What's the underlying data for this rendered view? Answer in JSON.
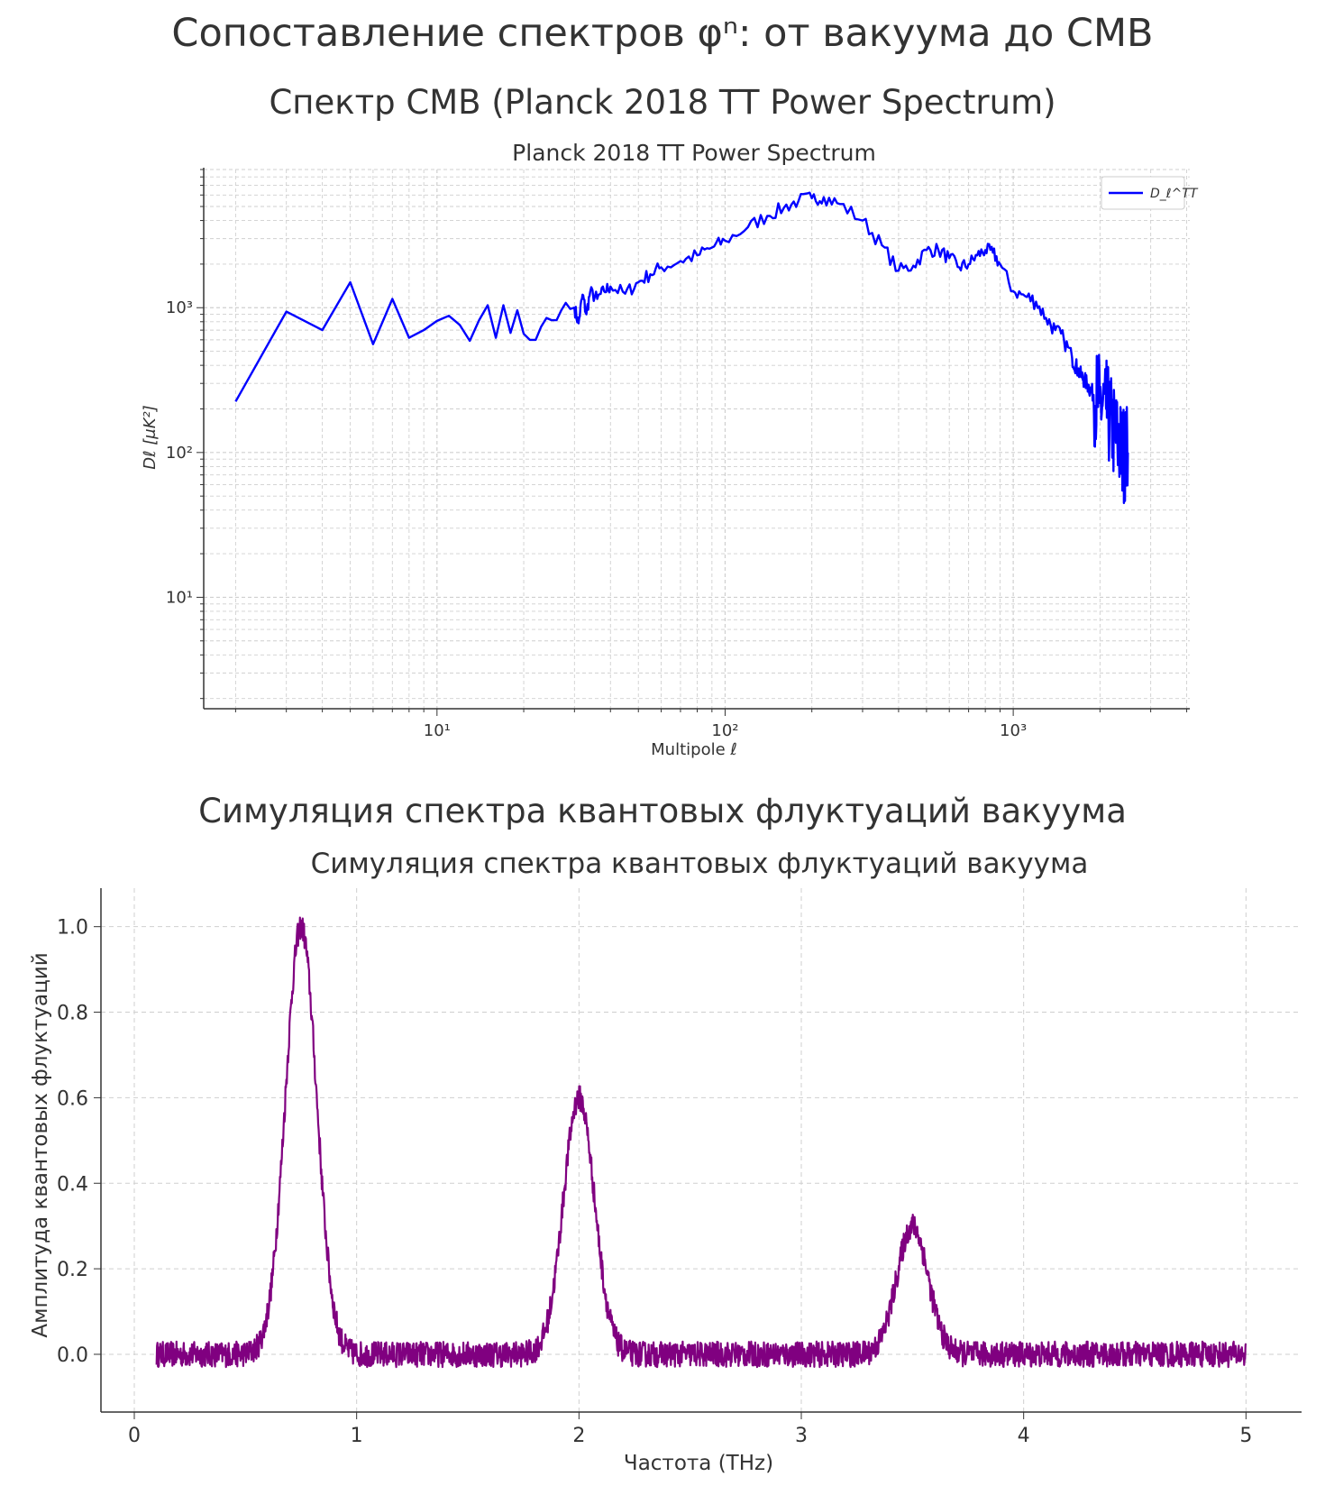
{
  "page": {
    "main_title": "Сопоставление спектров φⁿ: от вакуума до CMB",
    "subtitle_1": "Спектр CMB (Planck 2018 TT Power Spectrum)",
    "subtitle_2": "Симуляция спектра квантовых флуктуаций вакуума"
  },
  "chart_data": [
    {
      "type": "line",
      "title": "Planck 2018 TT Power Spectrum",
      "xlabel": "Multipole ℓ",
      "ylabel": "Dℓ [μK²]",
      "xscale": "log",
      "yscale": "log",
      "xlim": [
        1.55,
        4100
      ],
      "ylim": [
        1.7,
        9000
      ],
      "xticks": [
        10,
        100,
        1000
      ],
      "yticks": [
        10,
        100,
        1000
      ],
      "xtick_labels": [
        "10¹",
        "10²",
        "10³"
      ],
      "ytick_labels": [
        "10¹",
        "10²",
        "10³"
      ],
      "grid": true,
      "legend": "top-right",
      "colors": {
        "line": "#0000ff"
      },
      "series": [
        {
          "name": "D_ℓ^TT",
          "x": [
            2,
            3,
            4,
            5,
            6,
            7,
            8,
            9,
            10,
            11,
            12,
            13,
            14,
            15,
            16,
            17,
            18,
            19,
            20,
            21,
            22,
            23,
            24,
            25,
            26,
            27,
            28,
            29,
            30,
            31,
            32,
            33,
            34,
            36,
            38,
            40,
            45,
            50,
            55,
            60,
            70,
            80,
            90,
            100,
            120,
            140,
            160,
            180,
            200,
            220,
            250,
            300,
            350,
            400,
            450,
            500,
            550,
            600,
            650,
            700,
            750,
            800,
            850,
            900,
            1000,
            1100,
            1200,
            1300,
            1400,
            1500,
            1600,
            1700,
            1800,
            1900,
            2000,
            2100,
            2200,
            2300,
            2400,
            2500
          ],
          "y": [
            225,
            940,
            700,
            1500,
            560,
            1150,
            620,
            700,
            810,
            880,
            760,
            590,
            820,
            1040,
            620,
            1040,
            670,
            960,
            660,
            600,
            600,
            740,
            850,
            820,
            820,
            960,
            1080,
            980,
            1000,
            780,
            1230,
            900,
            1280,
            1150,
            1300,
            1400,
            1250,
            1500,
            1700,
            1900,
            2100,
            2300,
            2600,
            2900,
            3600,
            4300,
            4900,
            5500,
            5700,
            5800,
            5200,
            4000,
            2700,
            1800,
            1950,
            2500,
            2500,
            2200,
            1900,
            2000,
            2300,
            2500,
            2400,
            2000,
            1300,
            1200,
            1100,
            850,
            700,
            600,
            450,
            350,
            300,
            250,
            220,
            200,
            150,
            120,
            100,
            100
          ]
        }
      ]
    },
    {
      "type": "line",
      "title": "Симуляция спектра квантовых флуктуаций вакуума",
      "xlabel": "Частота (THz)",
      "ylabel": "Амплитуда квантовых флуктуаций",
      "xlim": [
        -0.15,
        5.25
      ],
      "ylim": [
        -0.135,
        1.09
      ],
      "xticks": [
        0,
        1,
        2,
        3,
        4,
        5
      ],
      "yticks": [
        0.0,
        0.2,
        0.4,
        0.6,
        0.8,
        1.0
      ],
      "xtick_labels": [
        "0",
        "1",
        "2",
        "3",
        "4",
        "5"
      ],
      "ytick_labels": [
        "0.0",
        "0.2",
        "0.4",
        "0.6",
        "0.8",
        "1.0"
      ],
      "grid": true,
      "colors": {
        "line": "#800080"
      },
      "x_range": [
        0.1,
        5.0
      ],
      "noise_amplitude": 0.03,
      "peaks": [
        {
          "center": 0.75,
          "height": 1.0
        },
        {
          "center": 2.0,
          "height": 0.6
        },
        {
          "center": 3.5,
          "height": 0.3
        }
      ]
    }
  ]
}
